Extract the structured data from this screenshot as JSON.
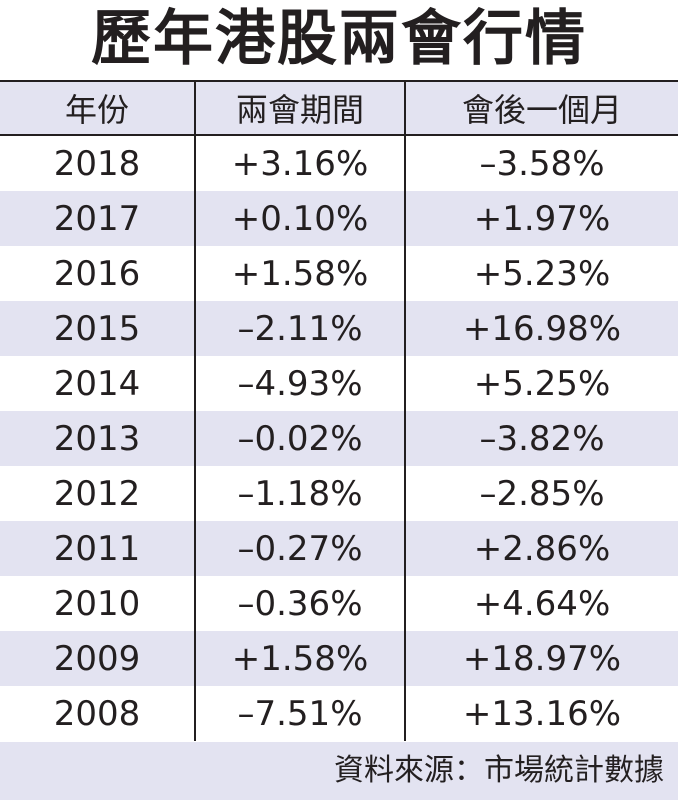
{
  "title": "歷年港股兩會行情",
  "table": {
    "headers": [
      "年份",
      "兩會期間",
      "會後一個月"
    ],
    "rows": [
      [
        "2018",
        "+3.16%",
        "–3.58%"
      ],
      [
        "2017",
        "+0.10%",
        "+1.97%"
      ],
      [
        "2016",
        "+1.58%",
        "+5.23%"
      ],
      [
        "2015",
        "–2.11%",
        "+16.98%"
      ],
      [
        "2014",
        "–4.93%",
        "+5.25%"
      ],
      [
        "2013",
        "–0.02%",
        "–3.82%"
      ],
      [
        "2012",
        "–1.18%",
        "–2.85%"
      ],
      [
        "2011",
        "–0.27%",
        "+2.86%"
      ],
      [
        "2010",
        "–0.36%",
        "+4.64%"
      ],
      [
        "2009",
        "+1.58%",
        "+18.97%"
      ],
      [
        "2008",
        "–7.51%",
        "+13.16%"
      ]
    ]
  },
  "source": "資料來源：市場統計數據",
  "colors": {
    "shade": "#e3e3f1",
    "text": "#231f20",
    "rule": "#231f20"
  }
}
